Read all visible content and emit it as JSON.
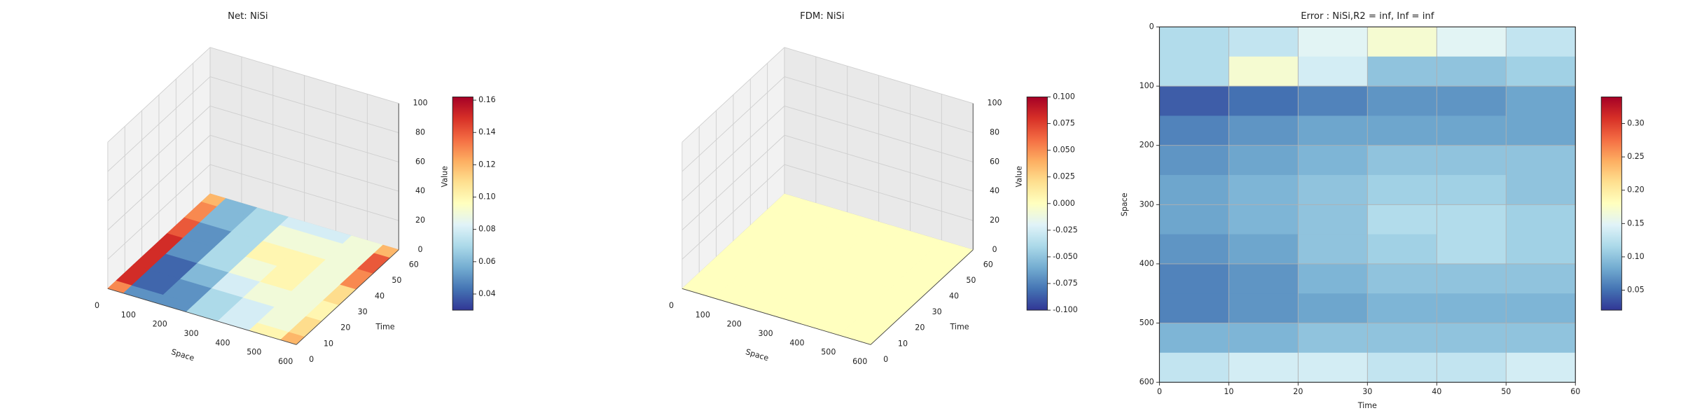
{
  "chart_data": [
    {
      "type": "surface3d",
      "title": "Net: NiSi",
      "xlabel": "Space",
      "ylabel": "Time",
      "zlabel": "Value",
      "x": [
        0,
        100,
        200,
        300,
        400,
        500,
        600
      ],
      "y": [
        0,
        10,
        20,
        30,
        40,
        50,
        60
      ],
      "z": [
        [
          0.13,
          0.05,
          0.05,
          0.07,
          0.08,
          0.1,
          0.12
        ],
        [
          0.15,
          0.04,
          0.05,
          0.07,
          0.08,
          0.09,
          0.11
        ],
        [
          0.15,
          0.04,
          0.06,
          0.08,
          0.09,
          0.09,
          0.1
        ],
        [
          0.15,
          0.05,
          0.07,
          0.09,
          0.1,
          0.09,
          0.11
        ],
        [
          0.14,
          0.05,
          0.07,
          0.1,
          0.1,
          0.09,
          0.13
        ],
        [
          0.13,
          0.06,
          0.07,
          0.09,
          0.09,
          0.09,
          0.14
        ],
        [
          0.12,
          0.06,
          0.07,
          0.08,
          0.08,
          0.09,
          0.12
        ]
      ],
      "xlim": [
        0,
        600
      ],
      "ylim": [
        0,
        60
      ],
      "zlim": [
        0,
        100
      ],
      "xticks": [
        0,
        100,
        200,
        300,
        400,
        500,
        600
      ],
      "yticks": [
        0,
        10,
        20,
        30,
        40,
        50,
        60
      ],
      "zticks": [
        0,
        20,
        40,
        60,
        80,
        100
      ],
      "grid": true,
      "colorbar": {
        "clim": [
          0.03,
          0.162
        ],
        "ticks": [
          0.04,
          0.06,
          0.08,
          {
            "value": 0.1,
            "label": "0.10"
          },
          0.12,
          0.14,
          0.16
        ]
      },
      "cmap": [
        "#313695",
        "#4575b4",
        "#74add1",
        "#abd9e9",
        "#e0f3f8",
        "#ffffbf",
        "#fee090",
        "#fdae61",
        "#f46d43",
        "#d73027",
        "#a50026"
      ]
    },
    {
      "type": "surface3d",
      "title": "FDM: NiSi",
      "xlabel": "Space",
      "ylabel": "Time",
      "zlabel": "Value",
      "x": [
        0,
        200,
        400,
        600
      ],
      "y": [
        0,
        20,
        40,
        60
      ],
      "z": [
        [
          0,
          0,
          0,
          0
        ],
        [
          0,
          0,
          0,
          0
        ],
        [
          0,
          0,
          0,
          0
        ],
        [
          0,
          0,
          0,
          0
        ]
      ],
      "xlim": [
        0,
        600
      ],
      "ylim": [
        0,
        60
      ],
      "zlim": [
        0,
        100
      ],
      "xticks": [
        0,
        100,
        200,
        300,
        400,
        500,
        600
      ],
      "yticks": [
        0,
        10,
        20,
        30,
        40,
        50,
        60
      ],
      "zticks": [
        0,
        20,
        40,
        60,
        80,
        100
      ],
      "grid": true,
      "colorbar": {
        "clim": [
          -0.1,
          0.1
        ],
        "ticks": [
          {
            "value": -0.1,
            "label": "-0.100"
          },
          -0.075,
          {
            "value": -0.05,
            "label": "-0.050"
          },
          -0.025,
          {
            "value": 0,
            "label": "0.000"
          },
          0.025,
          {
            "value": 0.05,
            "label": "0.050"
          },
          0.075,
          {
            "value": 0.1,
            "label": "0.100"
          }
        ]
      },
      "cmap": [
        "#313695",
        "#4575b4",
        "#74add1",
        "#abd9e9",
        "#e0f3f8",
        "#ffffbf",
        "#fee090",
        "#fdae61",
        "#f46d43",
        "#d73027",
        "#a50026"
      ]
    },
    {
      "type": "heatmap",
      "title": "Error : NiSi,R2 = inf, Inf = inf",
      "xlabel": "Time",
      "ylabel": "Space",
      "xbins": [
        0,
        10,
        20,
        30,
        40,
        50,
        60
      ],
      "ybins": [
        0,
        50,
        100,
        150,
        200,
        250,
        300,
        350,
        400,
        450,
        500,
        550,
        600
      ],
      "z": [
        [
          0.12,
          0.13,
          0.15,
          0.17,
          0.15,
          0.13
        ],
        [
          0.12,
          0.17,
          0.14,
          0.1,
          0.1,
          0.11
        ],
        [
          0.04,
          0.05,
          0.06,
          0.07,
          0.07,
          0.08
        ],
        [
          0.06,
          0.07,
          0.08,
          0.08,
          0.08,
          0.08
        ],
        [
          0.07,
          0.08,
          0.09,
          0.1,
          0.1,
          0.1
        ],
        [
          0.08,
          0.09,
          0.1,
          0.11,
          0.11,
          0.1
        ],
        [
          0.08,
          0.09,
          0.1,
          0.12,
          0.12,
          0.11
        ],
        [
          0.07,
          0.08,
          0.1,
          0.11,
          0.12,
          0.11
        ],
        [
          0.06,
          0.07,
          0.09,
          0.1,
          0.1,
          0.1
        ],
        [
          0.06,
          0.07,
          0.08,
          0.09,
          0.09,
          0.09
        ],
        [
          0.09,
          0.09,
          0.1,
          0.1,
          0.1,
          0.1
        ],
        [
          0.13,
          0.14,
          0.14,
          0.13,
          0.13,
          0.14
        ]
      ],
      "xlim": [
        0,
        60
      ],
      "ylim": [
        600,
        0
      ],
      "xticks": [
        0,
        10,
        20,
        30,
        40,
        50,
        60
      ],
      "yticks": [
        0,
        100,
        200,
        300,
        400,
        500,
        600
      ],
      "grid": true,
      "colorbar": {
        "clim": [
          0.02,
          0.34
        ],
        "ticks": [
          0.05,
          {
            "value": 0.1,
            "label": "0.10"
          },
          0.15,
          {
            "value": 0.2,
            "label": "0.20"
          },
          0.25,
          {
            "value": 0.3,
            "label": "0.30"
          }
        ]
      },
      "cmap": [
        "#313695",
        "#4575b4",
        "#74add1",
        "#abd9e9",
        "#e0f3f8",
        "#ffffbf",
        "#fee090",
        "#fdae61",
        "#f46d43",
        "#d73027",
        "#a50026"
      ]
    }
  ]
}
